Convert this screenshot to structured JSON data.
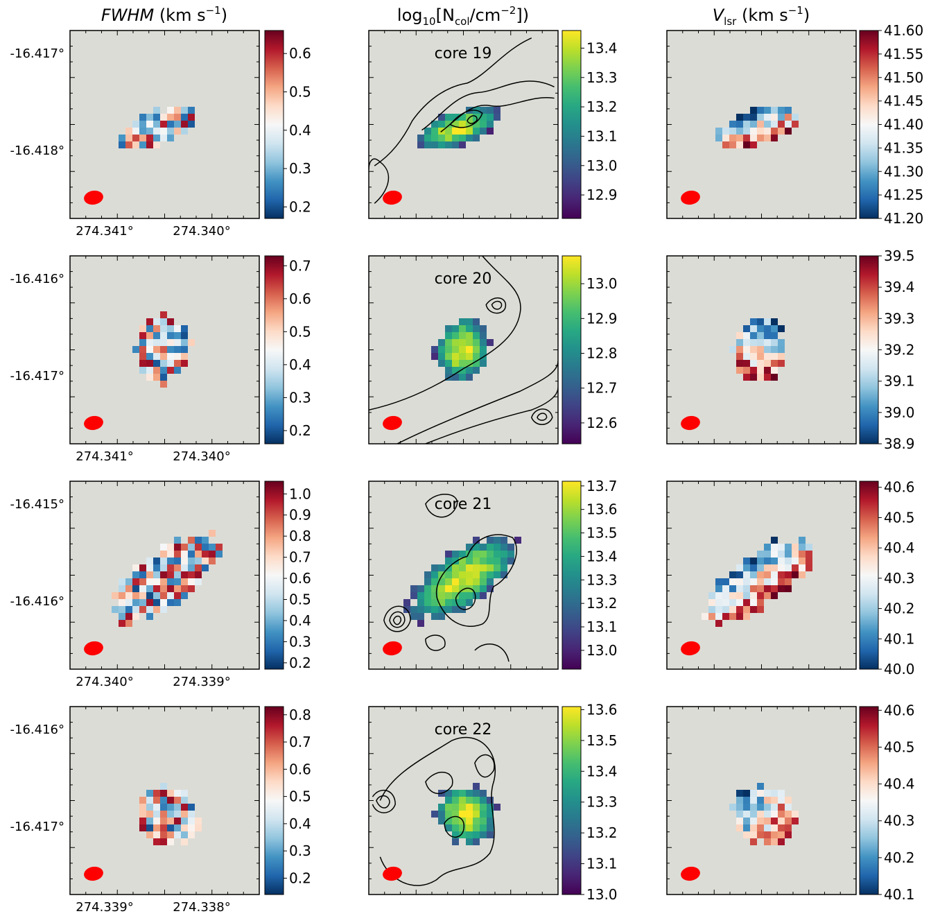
{
  "columns": [
    {
      "title_main": "FWHM",
      "title_unit": " (km s",
      "title_sup": "−1",
      "title_close": ")"
    },
    {
      "title_prefix": "log",
      "title_sub10": "10",
      "title_open": "[N",
      "title_subcol": "col",
      "title_rest": "/cm",
      "title_sup": "−2",
      "title_close": "])"
    },
    {
      "title_main": "V",
      "title_sub": "lsr",
      "title_unit": " (km s",
      "title_sup": "−1",
      "title_close": ")"
    }
  ],
  "chart_data": [
    {
      "type": "heatmap",
      "core": "core 19",
      "panels": [
        {
          "quantity": "FWHM",
          "cmap": "RdBu_r",
          "colorbar_ticks": [
            "0.2",
            "0.3",
            "0.4",
            "0.5",
            "0.6"
          ],
          "colorbar_range": [
            0.17,
            0.66
          ]
        },
        {
          "quantity": "log10 Ncol",
          "cmap": "viridis",
          "colorbar_ticks": [
            "12.9",
            "13.0",
            "13.1",
            "13.2",
            "13.3",
            "13.4"
          ],
          "colorbar_range": [
            12.82,
            13.46
          ]
        },
        {
          "quantity": "Vlsr",
          "cmap": "RdBu_r",
          "colorbar_ticks": [
            "41.20",
            "41.25",
            "41.30",
            "41.35",
            "41.40",
            "41.45",
            "41.50",
            "41.55",
            "41.60"
          ],
          "colorbar_range": [
            41.2,
            41.6
          ]
        }
      ],
      "dec_ticks": [
        "-16.417°",
        "-16.418°"
      ],
      "ra_ticks": [
        "274.341°",
        "274.340°"
      ]
    },
    {
      "type": "heatmap",
      "core": "core 20",
      "panels": [
        {
          "quantity": "FWHM",
          "cmap": "RdBu_r",
          "colorbar_ticks": [
            "0.2",
            "0.3",
            "0.4",
            "0.5",
            "0.6",
            "0.7"
          ],
          "colorbar_range": [
            0.16,
            0.73
          ]
        },
        {
          "quantity": "log10 Ncol",
          "cmap": "viridis",
          "colorbar_ticks": [
            "12.6",
            "12.7",
            "12.8",
            "12.9",
            "13.0"
          ],
          "colorbar_range": [
            12.54,
            13.08
          ]
        },
        {
          "quantity": "Vlsr",
          "cmap": "RdBu_r",
          "colorbar_ticks": [
            "38.9",
            "39.0",
            "39.1",
            "39.2",
            "39.3",
            "39.4",
            "39.5"
          ],
          "colorbar_range": [
            38.9,
            39.5
          ]
        }
      ],
      "dec_ticks": [
        "-16.416°",
        "-16.417°"
      ],
      "ra_ticks": [
        "274.341°",
        "274.340°"
      ]
    },
    {
      "type": "heatmap",
      "core": "core 21",
      "panels": [
        {
          "quantity": "FWHM",
          "cmap": "RdBu_r",
          "colorbar_ticks": [
            "0.2",
            "0.3",
            "0.4",
            "0.5",
            "0.6",
            "0.7",
            "0.8",
            "0.9",
            "1.0"
          ],
          "colorbar_range": [
            0.17,
            1.06
          ]
        },
        {
          "quantity": "log10 Ncol",
          "cmap": "viridis",
          "colorbar_ticks": [
            "13.0",
            "13.1",
            "13.2",
            "13.3",
            "13.4",
            "13.5",
            "13.6",
            "13.7"
          ],
          "colorbar_range": [
            12.92,
            13.72
          ]
        },
        {
          "quantity": "Vlsr",
          "cmap": "RdBu_r",
          "colorbar_ticks": [
            "40.0",
            "40.1",
            "40.2",
            "40.3",
            "40.4",
            "40.5",
            "40.6"
          ],
          "colorbar_range": [
            40.0,
            40.62
          ]
        }
      ],
      "dec_ticks": [
        "-16.415°",
        "-16.416°"
      ],
      "ra_ticks": [
        "274.340°",
        "274.339°"
      ]
    },
    {
      "type": "heatmap",
      "core": "core 22",
      "panels": [
        {
          "quantity": "FWHM",
          "cmap": "RdBu_r",
          "colorbar_ticks": [
            "0.2",
            "0.3",
            "0.4",
            "0.5",
            "0.6",
            "0.7",
            "0.8"
          ],
          "colorbar_range": [
            0.14,
            0.83
          ]
        },
        {
          "quantity": "log10 Ncol",
          "cmap": "viridis",
          "colorbar_ticks": [
            "13.0",
            "13.1",
            "13.2",
            "13.3",
            "13.4",
            "13.5",
            "13.6"
          ],
          "colorbar_range": [
            13.0,
            13.61
          ]
        },
        {
          "quantity": "Vlsr",
          "cmap": "RdBu_r",
          "colorbar_ticks": [
            "40.1",
            "40.2",
            "40.3",
            "40.4",
            "40.5",
            "40.6"
          ],
          "colorbar_range": [
            40.1,
            40.61
          ]
        }
      ],
      "dec_ticks": [
        "-16.416°",
        "-16.417°"
      ],
      "ra_ticks": [
        "274.339°",
        "274.338°"
      ]
    }
  ],
  "colors": {
    "background": "#dcdcd6",
    "beam": "#ff0000"
  }
}
